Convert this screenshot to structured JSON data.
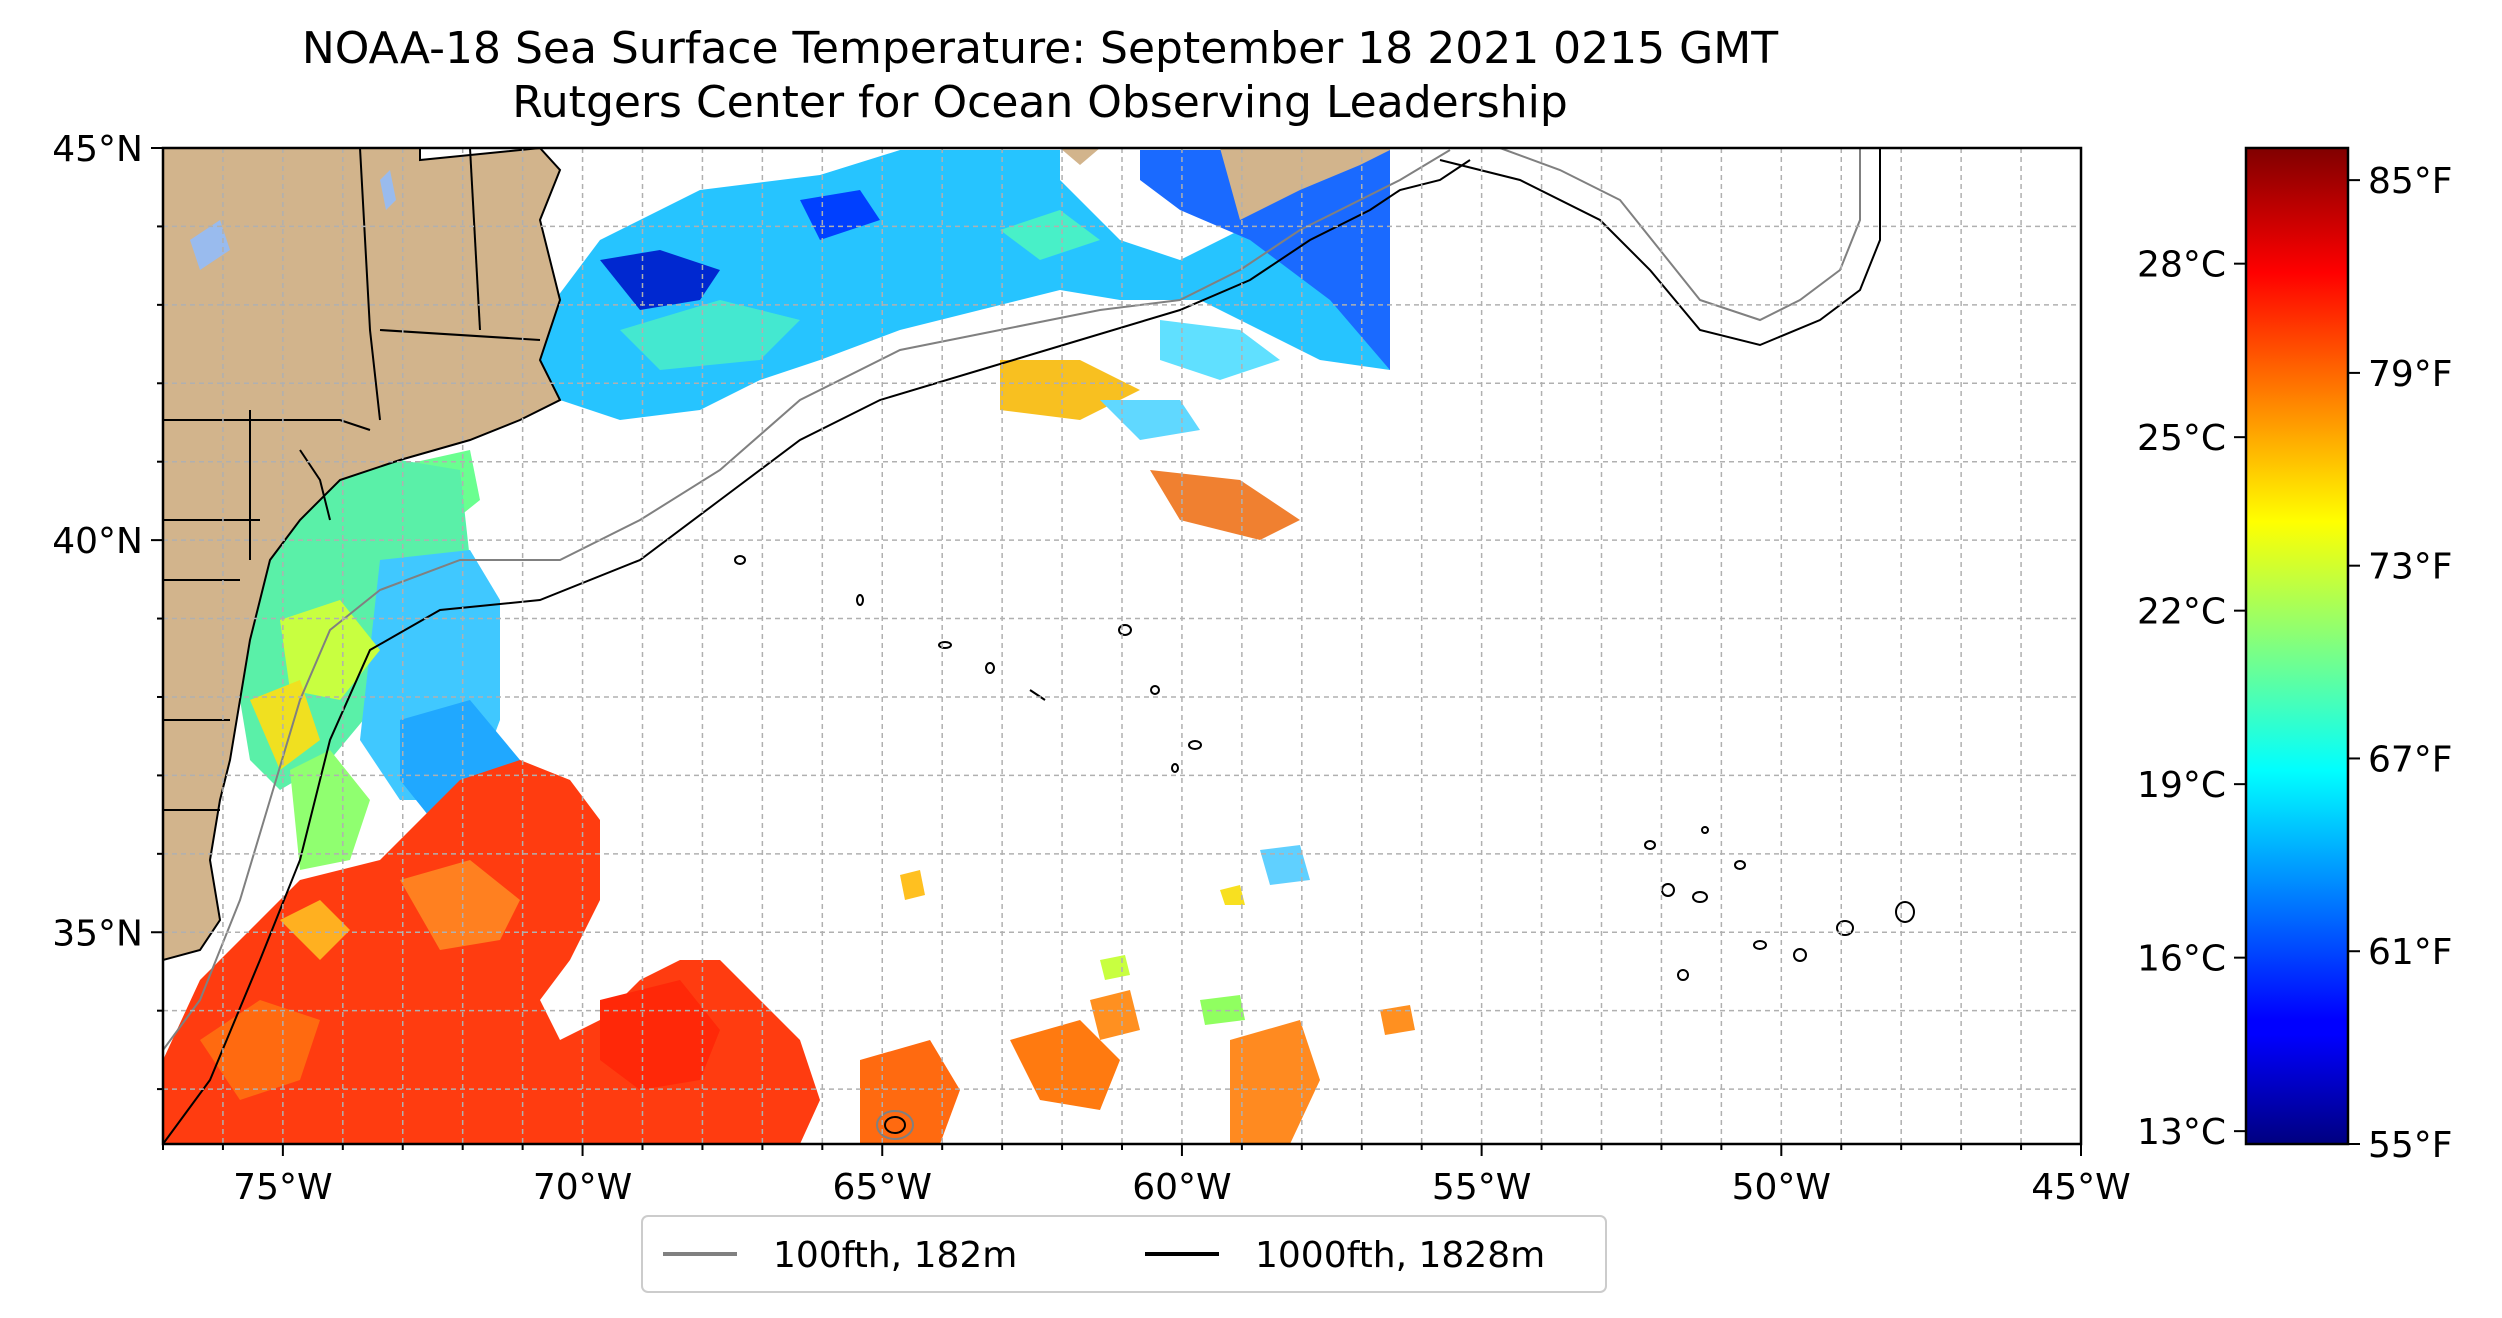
{
  "title": "NOAA-18 Sea Surface Temperature: September 18 2021 0215 GMT",
  "subtitle": "Rutgers Center for Ocean Observing Leadership",
  "map": {
    "extent": {
      "lon_min": -77,
      "lon_max": -45,
      "lat_min": 32.3,
      "lat_max": 45
    },
    "lon_ticks": [
      {
        "value": -75,
        "label": "75°W"
      },
      {
        "value": -70,
        "label": "70°W"
      },
      {
        "value": -65,
        "label": "65°W"
      },
      {
        "value": -60,
        "label": "60°W"
      },
      {
        "value": -55,
        "label": "55°W"
      },
      {
        "value": -50,
        "label": "50°W"
      },
      {
        "value": -45,
        "label": "45°W"
      }
    ],
    "lat_ticks": [
      {
        "value": 45,
        "label": "45°N"
      },
      {
        "value": 40,
        "label": "40°N"
      },
      {
        "value": 35,
        "label": "35°N"
      }
    ],
    "gridlines": true,
    "land_color": "#d2b48c",
    "grid_color": "#b0b0b0"
  },
  "legend": {
    "placement": "bottom-center",
    "items": [
      {
        "label": "100fth, 182m",
        "color": "#808080"
      },
      {
        "label": "1000fth, 1828m",
        "color": "#000000"
      }
    ]
  },
  "colorbar": {
    "colormap": "jet",
    "celsius_ticks": [
      "28°C",
      "25°C",
      "22°C",
      "19°C",
      "16°C",
      "13°C"
    ],
    "fahrenheit_ticks": [
      "85°F",
      "79°F",
      "73°F",
      "67°F",
      "61°F",
      "55°F"
    ],
    "range_f": [
      55,
      86
    ]
  }
}
